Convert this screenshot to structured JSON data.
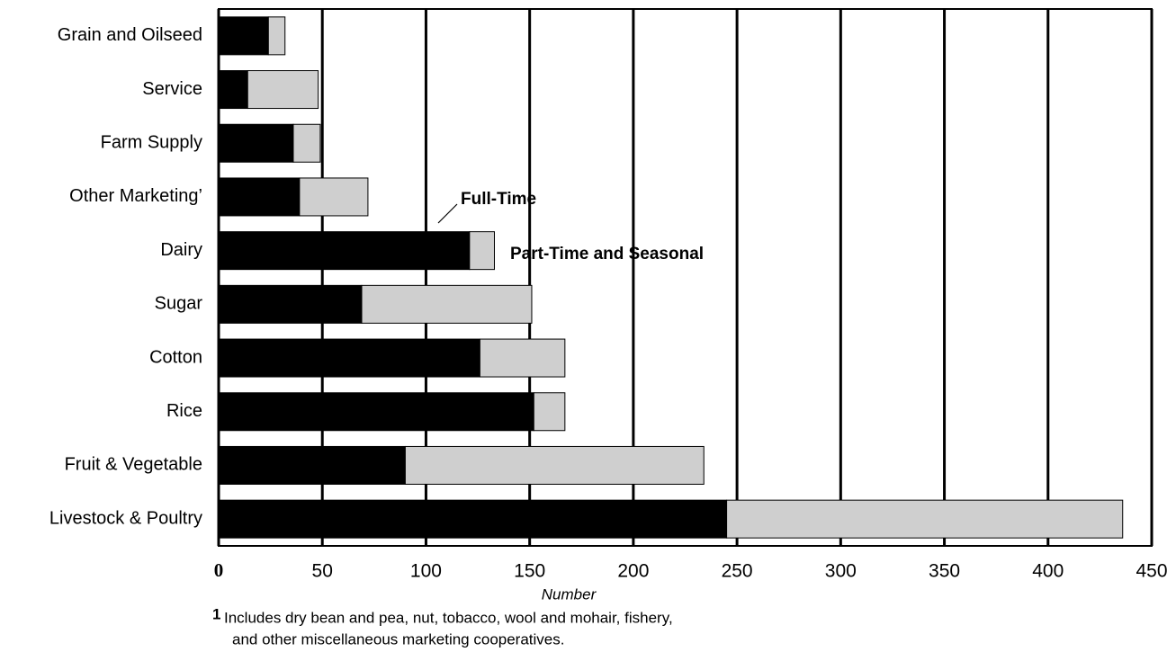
{
  "chart_data": {
    "type": "stacked-barh",
    "categories": [
      "Grain and Oilseed",
      "Service",
      "Farm Supply",
      "Other Marketing’",
      "Dairy",
      "Sugar",
      "Cotton",
      "Rice",
      "Fruit & Vegetable",
      "Livestock & Poultry"
    ],
    "series": [
      {
        "name": "Full-Time",
        "color": "#000000",
        "values": [
          24,
          14,
          36,
          39,
          121,
          69,
          126,
          152,
          90,
          245
        ]
      },
      {
        "name": "Part-Time and Seasonal",
        "color": "#cfcfcf",
        "values": [
          8,
          34,
          13,
          33,
          12,
          82,
          41,
          15,
          144,
          191
        ]
      }
    ],
    "xlim": [
      0,
      450
    ],
    "xticks": [
      0,
      50,
      100,
      150,
      200,
      250,
      300,
      350,
      400,
      450
    ],
    "xlabel": "Number",
    "grid": true,
    "footnote": {
      "marker": "1",
      "lines": [
        "Includes dry bean and pea, nut, tobacco, wool and mohair, fishery,",
        "and other miscellaneous marketing cooperatives."
      ]
    }
  }
}
